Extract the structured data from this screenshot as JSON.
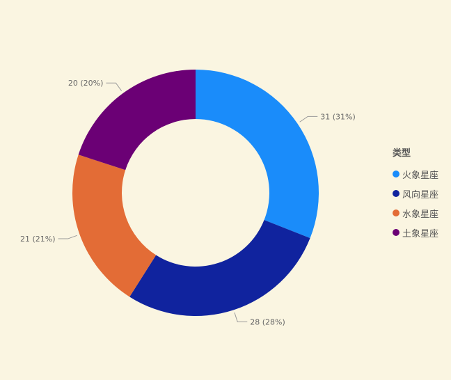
{
  "chart_data": {
    "type": "pie",
    "variant": "donut",
    "categories": [
      "火象星座",
      "风向星座",
      "水象星座",
      "土象星座"
    ],
    "values": [
      31,
      28,
      21,
      20
    ],
    "percents": [
      31,
      28,
      21,
      20
    ],
    "data_labels": [
      "31 (31%)",
      "28 (28%)",
      "21 (21%)",
      "20 (20%)"
    ],
    "colors": [
      "#1a8cfa",
      "#10239e",
      "#e36c36",
      "#6b0075"
    ],
    "legend_title": "类型",
    "legend_position": "right",
    "start_angle": "top",
    "direction": "clockwise"
  }
}
